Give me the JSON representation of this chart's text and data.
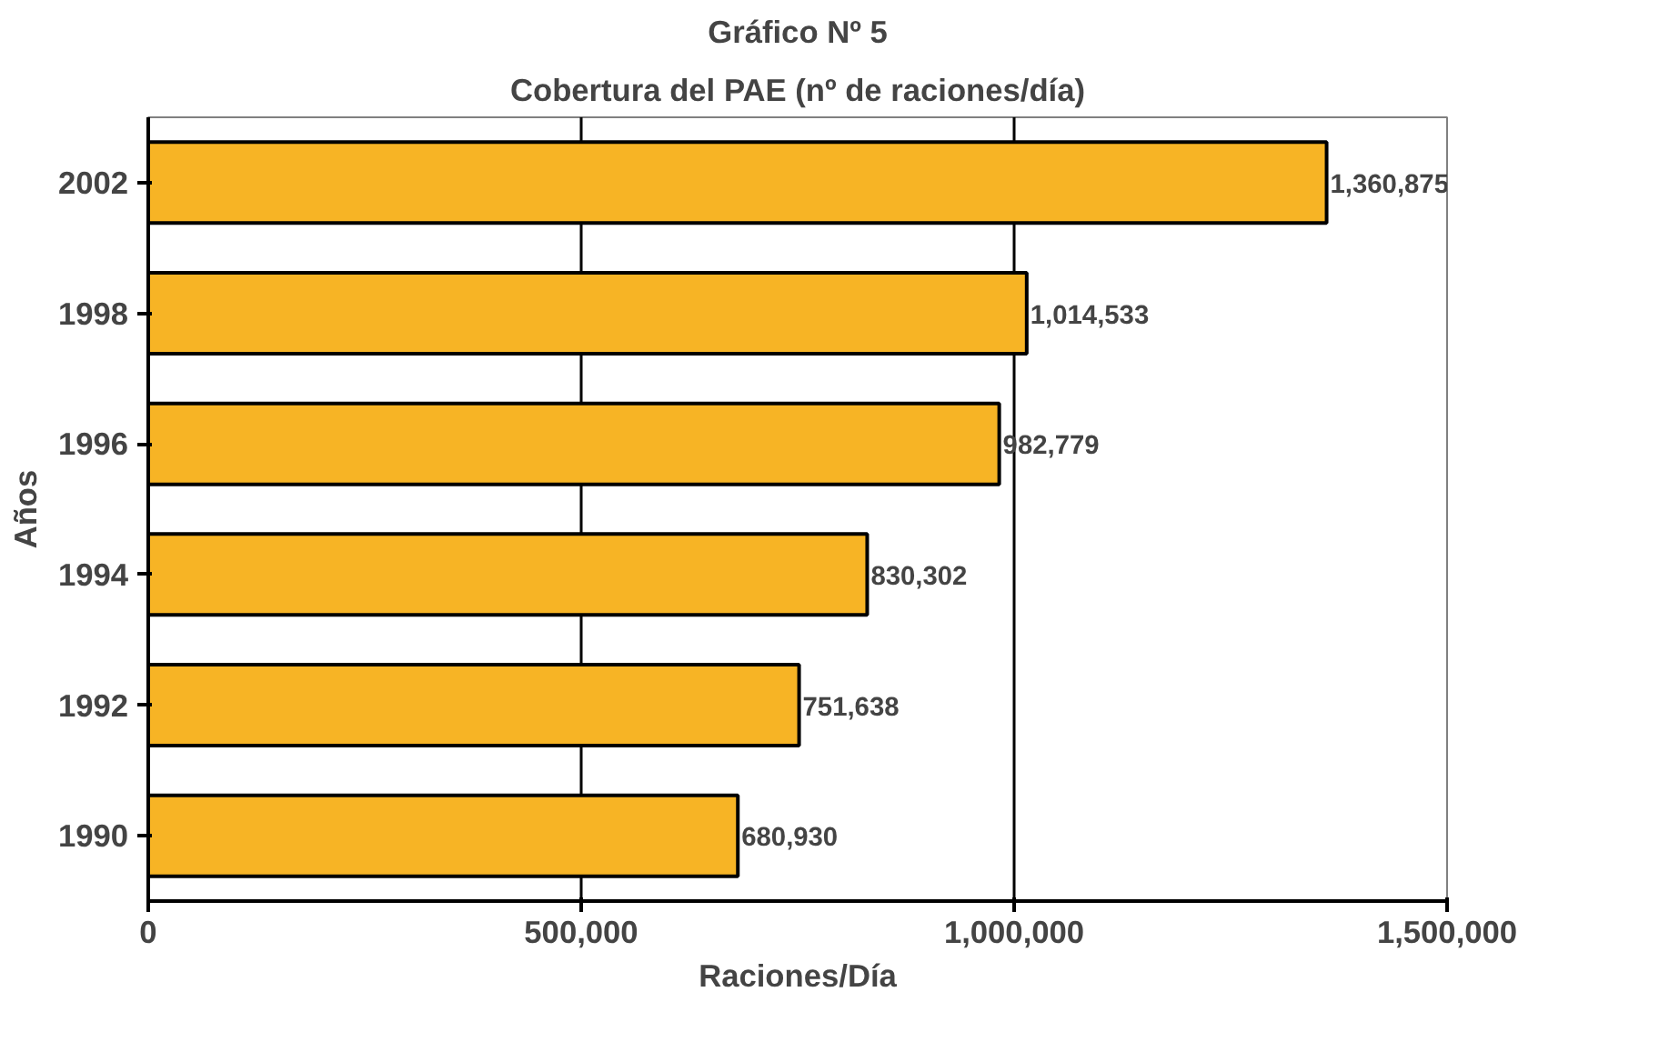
{
  "chart_data": {
    "type": "bar",
    "orientation": "horizontal",
    "title": "Gráfico Nº 5",
    "subtitle": "Cobertura del PAE (nº de raciones/día)",
    "xlabel": "Raciones/Día",
    "ylabel": "Años",
    "categories": [
      "2002",
      "1998",
      "1996",
      "1994",
      "1992",
      "1990"
    ],
    "values": [
      1360875,
      1014533,
      982779,
      830302,
      751638,
      680930
    ],
    "value_labels": [
      "1,360,875",
      "1,014,533",
      "982,779",
      "830,302",
      "751,638",
      "680,930"
    ],
    "color": "#f7b425",
    "xlim": [
      0,
      1500000
    ],
    "xticks": [
      {
        "value": 0,
        "label": "0"
      },
      {
        "value": 500000,
        "label": "500,000"
      },
      {
        "value": 1000000,
        "label": "1,000,000"
      },
      {
        "value": 1500000,
        "label": "1,500,000"
      }
    ],
    "grid": "x"
  }
}
